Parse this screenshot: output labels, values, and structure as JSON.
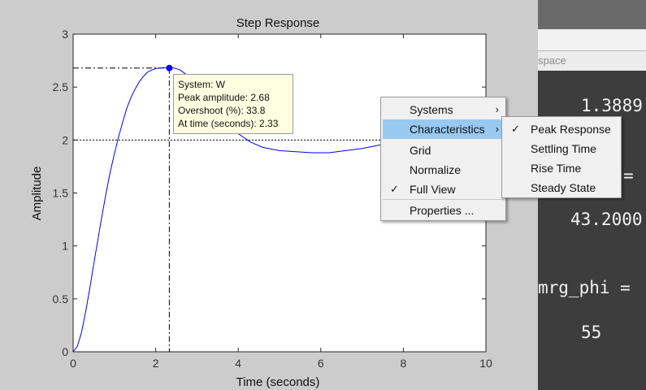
{
  "chart_data": {
    "type": "line",
    "title": "Step Response",
    "xlabel": "Time (seconds)",
    "ylabel": "Amplitude",
    "xlim": [
      0,
      10
    ],
    "ylim": [
      0,
      3
    ],
    "x_ticks": [
      "0",
      "2",
      "4",
      "6",
      "8",
      "10"
    ],
    "y_ticks": [
      "0",
      "0.5",
      "1",
      "1.5",
      "2",
      "2.5",
      "3"
    ],
    "series": [
      {
        "name": "W",
        "color": "#0000ff",
        "x": [
          0,
          0.1,
          0.2,
          0.3,
          0.4,
          0.5,
          0.6,
          0.7,
          0.8,
          0.9,
          1.0,
          1.1,
          1.2,
          1.3,
          1.4,
          1.5,
          1.6,
          1.7,
          1.8,
          1.9,
          2.0,
          2.1,
          2.2,
          2.33,
          2.45,
          2.6,
          2.8,
          3.0,
          3.2,
          3.4,
          3.6,
          3.8,
          4.0,
          4.3,
          4.6,
          5.0,
          5.4,
          5.8,
          6.2,
          6.6,
          7.0,
          7.4,
          7.8,
          8.1,
          8.4,
          8.7,
          9.0,
          9.3,
          9.6,
          10.0
        ],
        "y": [
          0,
          0.05,
          0.18,
          0.37,
          0.59,
          0.83,
          1.06,
          1.29,
          1.5,
          1.7,
          1.87,
          2.03,
          2.17,
          2.3,
          2.4,
          2.48,
          2.55,
          2.6,
          2.64,
          2.66,
          2.675,
          2.68,
          2.683,
          2.683,
          2.68,
          2.66,
          2.6,
          2.52,
          2.42,
          2.32,
          2.22,
          2.13,
          2.06,
          1.98,
          1.93,
          1.9,
          1.89,
          1.88,
          1.88,
          1.9,
          1.92,
          1.95,
          1.98,
          2.0,
          2.02,
          2.03,
          2.03,
          2.02,
          2.01,
          2.0
        ]
      }
    ],
    "steady_state": 2.0,
    "peak": {
      "x": 2.33,
      "y": 2.68
    },
    "grid": false
  },
  "datatip": {
    "system": "System: W",
    "peak": "Peak amplitude: 2.68",
    "overshoot": "Overshoot (%): 33.8",
    "time": "At time (seconds): 2.33"
  },
  "context_menu": {
    "systems": "Systems",
    "characteristics": "Characteristics",
    "grid": "Grid",
    "normalize": "Normalize",
    "full_view": "Full View",
    "properties": "Properties ..."
  },
  "submenu": {
    "peak_response": "Peak Response",
    "settling_time": "Settling Time",
    "rise_time": "Rise Time",
    "steady_state": "Steady State"
  },
  "side_panel": {
    "tab_label": "space",
    "lines": [
      "1.3889",
      "=",
      "43.2000",
      "mrg_phi =",
      "55"
    ]
  },
  "glyphs": {
    "check": "✓",
    "arrow": "›"
  }
}
